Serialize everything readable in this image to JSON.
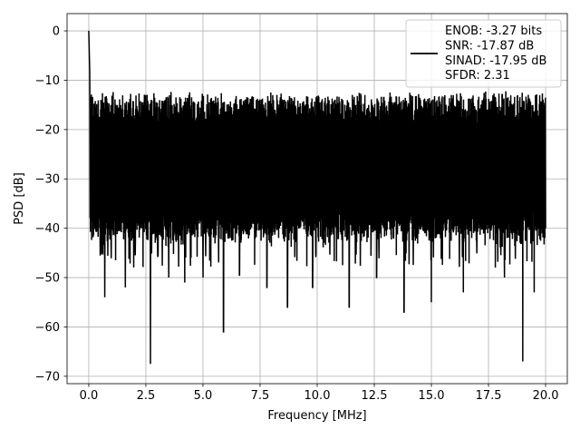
{
  "chart_data": {
    "type": "line",
    "title": "",
    "xlabel": "Frequency [MHz]",
    "ylabel": "PSD [dB]",
    "xlim": [
      -0.95,
      20.95
    ],
    "ylim": [
      -71.5,
      3.5
    ],
    "xticks": [
      0.0,
      2.5,
      5.0,
      7.5,
      10.0,
      12.5,
      15.0,
      17.5,
      20.0
    ],
    "xtick_labels": [
      "0.0",
      "2.5",
      "5.0",
      "7.5",
      "10.0",
      "12.5",
      "15.0",
      "17.5",
      "20.0"
    ],
    "yticks": [
      0,
      -10,
      -20,
      -30,
      -40,
      -50,
      -60,
      -70
    ],
    "ytick_labels": [
      "0",
      "−10",
      "−20",
      "−30",
      "−40",
      "−50",
      "−60",
      "−70"
    ],
    "grid": true,
    "legend_position": "top-right",
    "series": [
      {
        "color": "#000000",
        "x_range": [
          0.0,
          20.0
        ],
        "peak": {
          "x": 0.0,
          "y": 0.0
        },
        "noise_floor_upper": -17,
        "noise_floor_lower": -40,
        "dips": [
          {
            "x": 0.7,
            "y": -54
          },
          {
            "x": 1.6,
            "y": -52
          },
          {
            "x": 2.7,
            "y": -67.5
          },
          {
            "x": 3.5,
            "y": -50
          },
          {
            "x": 4.2,
            "y": -51
          },
          {
            "x": 5.0,
            "y": -50
          },
          {
            "x": 5.9,
            "y": -61
          },
          {
            "x": 6.6,
            "y": -49.5
          },
          {
            "x": 7.8,
            "y": -52
          },
          {
            "x": 8.7,
            "y": -56
          },
          {
            "x": 9.8,
            "y": -52
          },
          {
            "x": 11.4,
            "y": -56
          },
          {
            "x": 12.6,
            "y": -50
          },
          {
            "x": 13.8,
            "y": -57
          },
          {
            "x": 15.0,
            "y": -55
          },
          {
            "x": 16.4,
            "y": -53
          },
          {
            "x": 18.2,
            "y": -50
          },
          {
            "x": 19.0,
            "y": -67
          },
          {
            "x": 19.5,
            "y": -53
          }
        ]
      }
    ],
    "legend_lines": [
      "ENOB: -3.27 bits",
      "SNR: -17.87 dB",
      "SINAD: -17.95 dB",
      "SFDR: 2.31"
    ]
  }
}
